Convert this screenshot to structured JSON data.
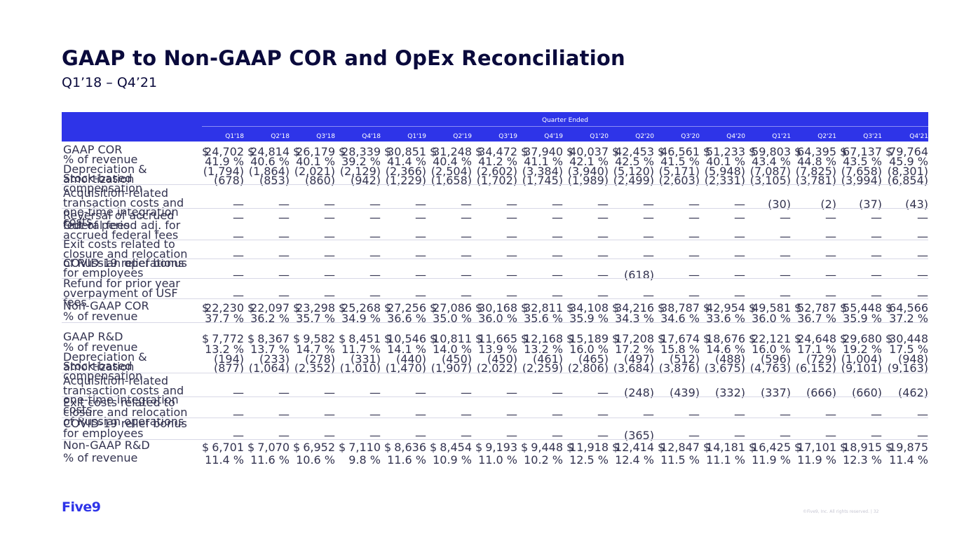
{
  "title": "GAAP to Non-GAAP COR and OpEx Reconciliation",
  "subtitle": "Q1’18 – Q4’21",
  "header": {
    "quarter_ended": "Quarter Ended",
    "quarters": [
      "Q1'18",
      "Q2'18",
      "Q3'18",
      "Q4'18",
      "Q1'19",
      "Q2'19",
      "Q3'19",
      "Q4'19",
      "Q1'20",
      "Q2'20",
      "Q3'20",
      "Q4'20",
      "Q1'21",
      "Q2'21",
      "Q3'21",
      "Q4'21"
    ]
  },
  "rows": [
    {
      "label": "GAAP COR",
      "dollar": true,
      "values": [
        "24,702",
        "24,814",
        "26,179",
        "28,339",
        "30,851",
        "31,248",
        "34,472",
        "37,940",
        "40,037",
        "42,453",
        "46,561",
        "51,233",
        "59,803",
        "64,395",
        "67,137",
        "79,764"
      ]
    },
    {
      "label": "% of revenue",
      "values": [
        "41.9 %",
        "40.6 %",
        "40.1 %",
        "39.2 %",
        "41.4 %",
        "40.4 %",
        "41.2 %",
        "41.1 %",
        "42.1 %",
        "42.5 %",
        "41.5 %",
        "40.1 %",
        "43.4 %",
        "44.8 %",
        "43.5 %",
        "45.9 %"
      ]
    },
    {
      "label": "Depreciation & amortization",
      "values": [
        "(1,794)",
        "(1,864)",
        "(2,021)",
        "(2,129)",
        "(2,366)",
        "(2,504)",
        "(2,602)",
        "(3,384)",
        "(3,940)",
        "(5,120)",
        "(5,171)",
        "(5,948)",
        "(7,087)",
        "(7,825)",
        "(7,658)",
        "(8,301)"
      ]
    },
    {
      "label": "Stock-based compensation",
      "values": [
        "(678)",
        "(853)",
        "(860)",
        "(942)",
        "(1,229)",
        "(1,658)",
        "(1,702)",
        "(1,745)",
        "(1,989)",
        "(2,499)",
        "(2,603)",
        "(2,331)",
        "(3,105)",
        "(3,781)",
        "(3,994)",
        "(6,854)"
      ]
    },
    {
      "label": "Acquisition-related transaction costs and one-time integration costs",
      "values": [
        "—",
        "—",
        "—",
        "—",
        "—",
        "—",
        "—",
        "—",
        "—",
        "—",
        "—",
        "—",
        "(30)",
        "(2)",
        "(37)",
        "(43)"
      ]
    },
    {
      "label": "Reversal of accrued federal fees",
      "values": [
        "—",
        "—",
        "—",
        "—",
        "—",
        "—",
        "—",
        "—",
        "—",
        "—",
        "—",
        "—",
        "—",
        "—",
        "—",
        "—"
      ]
    },
    {
      "label": "Out of period adj. for accrued federal fees",
      "values": [
        "—",
        "—",
        "—",
        "—",
        "—",
        "—",
        "—",
        "—",
        "—",
        "—",
        "—",
        "—",
        "—",
        "—",
        "—",
        "—"
      ]
    },
    {
      "label": "Exit costs related to closure and relocation of Russian operations",
      "values": [
        "—",
        "—",
        "—",
        "—",
        "—",
        "—",
        "—",
        "—",
        "—",
        "—",
        "—",
        "—",
        "—",
        "—",
        "—",
        "—"
      ]
    },
    {
      "label": "COVID-19 relief bonus for employees",
      "values": [
        "—",
        "—",
        "—",
        "—",
        "—",
        "—",
        "—",
        "—",
        "—",
        "(618)",
        "—",
        "—",
        "—",
        "—",
        "—",
        "—"
      ]
    },
    {
      "label": "Refund for prior year overpayment of USF fees",
      "values": [
        "—",
        "—",
        "—",
        "—",
        "—",
        "—",
        "—",
        "—",
        "—",
        "—",
        "—",
        "—",
        "—",
        "—",
        "—",
        "—"
      ]
    },
    {
      "label": "Non-GAAP COR",
      "dollar": true,
      "values": [
        "22,230",
        "22,097",
        "23,298",
        "25,268",
        "27,256",
        "27,086",
        "30,168",
        "32,811",
        "34,108",
        "34,216",
        "38,787",
        "42,954",
        "49,581",
        "52,787",
        "55,448",
        "64,566"
      ]
    },
    {
      "label": "% of revenue",
      "values": [
        "37.7 %",
        "36.2 %",
        "35.7 %",
        "34.9 %",
        "36.6 %",
        "35.0 %",
        "36.0 %",
        "35.6 %",
        "35.9 %",
        "34.3 %",
        "34.6 %",
        "33.6 %",
        "36.0 %",
        "36.7 %",
        "35.9 %",
        "37.2 %"
      ]
    },
    {
      "label": "GAAP R&D",
      "dollar": true,
      "values": [
        "7,772",
        "8,367",
        "9,582",
        "8,451",
        "10,546",
        "10,811",
        "11,665",
        "12,168",
        "15,189",
        "17,208",
        "17,674",
        "18,676",
        "22,121",
        "24,648",
        "29,680",
        "30,448"
      ]
    },
    {
      "label": "% of revenue",
      "values": [
        "13.2 %",
        "13.7 %",
        "14.7 %",
        "11.7 %",
        "14.1 %",
        "14.0 %",
        "13.9 %",
        "13.2 %",
        "16.0 %",
        "17.2 %",
        "15.8 %",
        "14.6 %",
        "16.0 %",
        "17.1 %",
        "19.2 %",
        "17.5 %"
      ]
    },
    {
      "label": "Depreciation & amortization",
      "values": [
        "(194)",
        "(233)",
        "(278)",
        "(331)",
        "(440)",
        "(450)",
        "(450)",
        "(461)",
        "(465)",
        "(497)",
        "(512)",
        "(488)",
        "(596)",
        "(729)",
        "(1,004)",
        "(948)"
      ]
    },
    {
      "label": "Stock-based compensation",
      "values": [
        "(877)",
        "(1,064)",
        "(2,352)",
        "(1,010)",
        "(1,470)",
        "(1,907)",
        "(2,022)",
        "(2,259)",
        "(2,806)",
        "(3,684)",
        "(3,876)",
        "(3,675)",
        "(4,763)",
        "(6,152)",
        "(9,101)",
        "(9,163)"
      ]
    },
    {
      "label": "Acquisition-related transaction costs and one-time integration costs",
      "values": [
        "—",
        "—",
        "—",
        "—",
        "—",
        "—",
        "—",
        "—",
        "—",
        "(248)",
        "(439)",
        "(332)",
        "(337)",
        "(666)",
        "(660)",
        "(462)"
      ]
    },
    {
      "label": "Exit costs related to closure and relocation of Russian operations",
      "values": [
        "—",
        "—",
        "—",
        "—",
        "—",
        "—",
        "—",
        "—",
        "—",
        "—",
        "—",
        "—",
        "—",
        "—",
        "—",
        "—"
      ]
    },
    {
      "label": "COVID-19 relief bonus for employees",
      "values": [
        "—",
        "—",
        "—",
        "—",
        "—",
        "—",
        "—",
        "—",
        "—",
        "(365)",
        "—",
        "—",
        "—",
        "—",
        "—",
        "—"
      ]
    },
    {
      "label": "Non-GAAP R&D",
      "dollar": true,
      "values": [
        "6,701",
        "7,070",
        "6,952",
        "7,110",
        "8,636",
        "8,454",
        "9,193",
        "9,448",
        "11,918",
        "12,414",
        "12,847",
        "14,181",
        "16,425",
        "17,101",
        "18,915",
        "19,875"
      ]
    },
    {
      "label": "% of revenue",
      "values": [
        "11.4 %",
        "11.6 %",
        "10.6 %",
        "9.8 %",
        "11.6 %",
        "10.9 %",
        "11.0 %",
        "10.2 %",
        "12.5 %",
        "12.4 %",
        "11.5 %",
        "11.1 %",
        "11.9 %",
        "11.9 %",
        "12.3 %",
        "11.4 %"
      ]
    }
  ],
  "currency_symbol": "$",
  "logo_text": "Five9",
  "copyright": "©Five9, Inc. All rights reserved. | 32"
}
